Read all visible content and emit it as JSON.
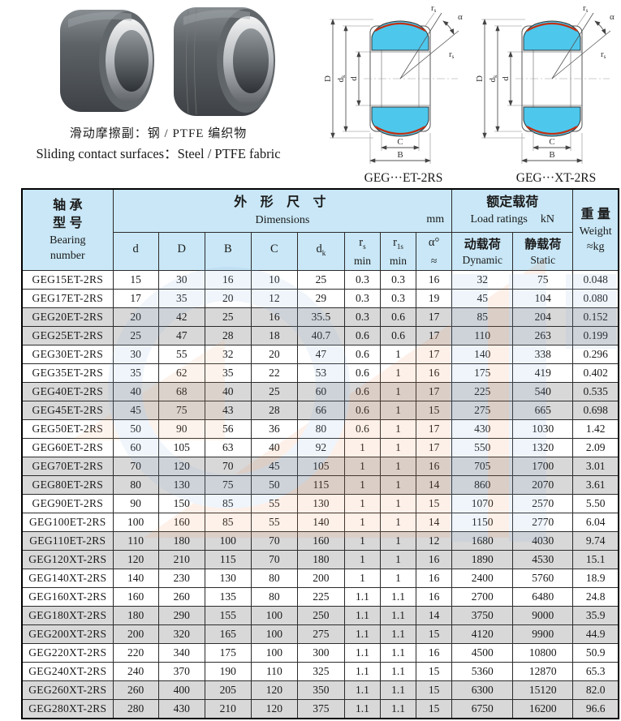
{
  "header": {
    "photo_caption_cn": "滑动摩擦副：钢 / PTFE 编织物",
    "photo_caption_en": "Sliding contact surfaces：Steel / PTFE fabric",
    "diagram_et_caption": "GEG···ET-2RS",
    "diagram_xt_caption": "GEG···XT-2RS"
  },
  "diagram_labels": {
    "outer_diameter": "D",
    "sphere_base": "d",
    "sphere_sub": "k",
    "bore": "d",
    "outer_width": "B",
    "inner_width": "C",
    "chamfer_base": "r",
    "chamfer_sub": "s",
    "angle": "α"
  },
  "table": {
    "bearing_header": {
      "cn1": "轴 承",
      "cn2": "型 号",
      "en1": "Bearing",
      "en2": "number"
    },
    "dims_group": {
      "cn": "外 形 尺 寸",
      "en": "Dimensions",
      "unit": "mm"
    },
    "load_group": {
      "cn": "额定载荷",
      "en": "Load ratings",
      "unit": "kN"
    },
    "weight_group": {
      "cn": "重 量",
      "en": "Weight",
      "unit": "≈kg"
    },
    "sub_headers": [
      {
        "base": "d",
        "sub": "",
        "line2": ""
      },
      {
        "base": "D",
        "sub": "",
        "line2": ""
      },
      {
        "base": "B",
        "sub": "",
        "line2": ""
      },
      {
        "base": "C",
        "sub": "",
        "line2": ""
      },
      {
        "base": "d",
        "sub": "k",
        "line2": ""
      },
      {
        "base": "r",
        "sub": "s",
        "line2": "min"
      },
      {
        "base": "r",
        "sub": "1s",
        "line2": "min"
      },
      {
        "base": "α°",
        "sub": "",
        "line2": "≈"
      },
      {
        "cn": "动载荷",
        "en": "Dynamic"
      },
      {
        "cn": "静载荷",
        "en": "Static"
      }
    ],
    "rows": [
      [
        "GEG15ET-2RS",
        "15",
        "30",
        "16",
        "10",
        "25",
        "0.3",
        "0.3",
        "16",
        "32",
        "75",
        "0.048"
      ],
      [
        "GEG17ET-2RS",
        "17",
        "35",
        "20",
        "12",
        "29",
        "0.3",
        "0.3",
        "19",
        "45",
        "104",
        "0.080"
      ],
      [
        "GEG20ET-2RS",
        "20",
        "42",
        "25",
        "16",
        "35.5",
        "0.3",
        "0.6",
        "17",
        "85",
        "204",
        "0.152"
      ],
      [
        "GEG25ET-2RS",
        "25",
        "47",
        "28",
        "18",
        "40.7",
        "0.6",
        "0.6",
        "17",
        "110",
        "263",
        "0.199"
      ],
      [
        "GEG30ET-2RS",
        "30",
        "55",
        "32",
        "20",
        "47",
        "0.6",
        "1",
        "17",
        "140",
        "338",
        "0.296"
      ],
      [
        "GEG35ET-2RS",
        "35",
        "62",
        "35",
        "22",
        "53",
        "0.6",
        "1",
        "16",
        "175",
        "419",
        "0.402"
      ],
      [
        "GEG40ET-2RS",
        "40",
        "68",
        "40",
        "25",
        "60",
        "0.6",
        "1",
        "17",
        "225",
        "540",
        "0.535"
      ],
      [
        "GEG45ET-2RS",
        "45",
        "75",
        "43",
        "28",
        "66",
        "0.6",
        "1",
        "15",
        "275",
        "665",
        "0.698"
      ],
      [
        "GEG50ET-2RS",
        "50",
        "90",
        "56",
        "36",
        "80",
        "0.6",
        "1",
        "17",
        "430",
        "1030",
        "1.42"
      ],
      [
        "GEG60ET-2RS",
        "60",
        "105",
        "63",
        "40",
        "92",
        "1",
        "1",
        "17",
        "550",
        "1320",
        "2.09"
      ],
      [
        "GEG70ET-2RS",
        "70",
        "120",
        "70",
        "45",
        "105",
        "1",
        "1",
        "16",
        "705",
        "1700",
        "3.01"
      ],
      [
        "GEG80ET-2RS",
        "80",
        "130",
        "75",
        "50",
        "115",
        "1",
        "1",
        "14",
        "860",
        "2070",
        "3.61"
      ],
      [
        "GEG90ET-2RS",
        "90",
        "150",
        "85",
        "55",
        "130",
        "1",
        "1",
        "15",
        "1070",
        "2570",
        "5.50"
      ],
      [
        "GEG100ET-2RS",
        "100",
        "160",
        "85",
        "55",
        "140",
        "1",
        "1",
        "14",
        "1150",
        "2770",
        "6.04"
      ],
      [
        "GEG110ET-2RS",
        "110",
        "180",
        "100",
        "70",
        "160",
        "1",
        "1",
        "12",
        "1680",
        "4030",
        "9.74"
      ],
      [
        "GEG120XT-2RS",
        "120",
        "210",
        "115",
        "70",
        "180",
        "1",
        "1",
        "16",
        "1890",
        "4530",
        "15.1"
      ],
      [
        "GEG140XT-2RS",
        "140",
        "230",
        "130",
        "80",
        "200",
        "1",
        "1",
        "16",
        "2400",
        "5760",
        "18.9"
      ],
      [
        "GEG160XT-2RS",
        "160",
        "260",
        "135",
        "80",
        "225",
        "1.1",
        "1.1",
        "16",
        "2700",
        "6480",
        "24.8"
      ],
      [
        "GEG180XT-2RS",
        "180",
        "290",
        "155",
        "100",
        "250",
        "1.1",
        "1.1",
        "14",
        "3750",
        "9000",
        "35.9"
      ],
      [
        "GEG200XT-2RS",
        "200",
        "320",
        "165",
        "100",
        "275",
        "1.1",
        "1.1",
        "15",
        "4120",
        "9900",
        "44.9"
      ],
      [
        "GEG220XT-2RS",
        "220",
        "340",
        "175",
        "100",
        "300",
        "1.1",
        "1.1",
        "16",
        "4500",
        "10800",
        "50.9"
      ],
      [
        "GEG240XT-2RS",
        "240",
        "370",
        "190",
        "110",
        "325",
        "1.1",
        "1.1",
        "15",
        "5360",
        "12870",
        "65.3"
      ],
      [
        "GEG260XT-2RS",
        "260",
        "400",
        "205",
        "120",
        "350",
        "1.1",
        "1.1",
        "15",
        "6300",
        "15120",
        "82.0"
      ],
      [
        "GEG280XT-2RS",
        "280",
        "430",
        "210",
        "120",
        "375",
        "1.1",
        "1.1",
        "15",
        "6750",
        "16200",
        "96.6"
      ]
    ]
  }
}
